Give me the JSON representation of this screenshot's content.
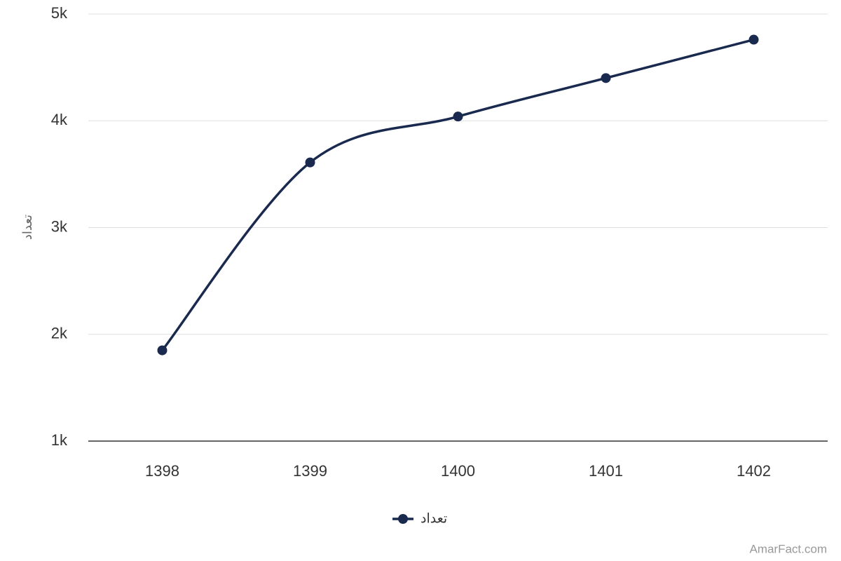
{
  "chart_data": {
    "type": "line",
    "y_label": "تعداد",
    "credit": "AmarFact.com",
    "categories": [
      "1398",
      "1399",
      "1400",
      "1401",
      "1402"
    ],
    "series": [
      {
        "name": "تعداد",
        "color": "#1a2a4f",
        "values": [
          1850,
          3610,
          4040,
          4400,
          4760
        ]
      }
    ],
    "ylim": [
      1000,
      5000
    ],
    "yticks": [
      {
        "value": 1000,
        "label": "1k"
      },
      {
        "value": 2000,
        "label": "2k"
      },
      {
        "value": 3000,
        "label": "3k"
      },
      {
        "value": 4000,
        "label": "4k"
      },
      {
        "value": 5000,
        "label": "5k"
      }
    ],
    "grid": true,
    "smooth": true,
    "legend": "bottom"
  }
}
